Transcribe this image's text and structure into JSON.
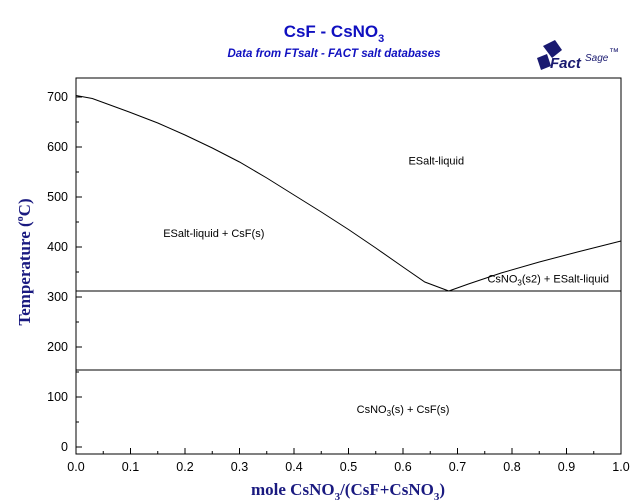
{
  "header": {
    "title_main": "CsF - CsNO",
    "title_sub": "3",
    "subtitle": "Data from FTsalt - FACT salt databases"
  },
  "logo": {
    "text_fact": "Fact",
    "text_sage": "Sage",
    "mark": "™",
    "icon": "factsage-logo-icon"
  },
  "chart_data": {
    "type": "line",
    "xlabel_parts": [
      "mole CsNO",
      "3",
      "/(CsF+CsNO",
      "3",
      ")"
    ],
    "ylabel_parts": [
      "Temperature (",
      "o",
      "C)"
    ],
    "xlim": [
      0,
      1
    ],
    "ylim": [
      0,
      750
    ],
    "xticks": [
      "0.0",
      "0.1",
      "0.2",
      "0.3",
      "0.4",
      "0.5",
      "0.6",
      "0.7",
      "0.8",
      "0.9",
      "1.0"
    ],
    "yticks": [
      "0",
      "100",
      "200",
      "300",
      "400",
      "500",
      "600",
      "700"
    ],
    "grid": false,
    "line_color": "#000000",
    "series": [
      {
        "points": [
          [
            0,
            703
          ],
          [
            0.03,
            697
          ],
          [
            0.06,
            685
          ],
          [
            0.1,
            669
          ],
          [
            0.15,
            648
          ],
          [
            0.2,
            624
          ],
          [
            0.25,
            598
          ],
          [
            0.3,
            570
          ],
          [
            0.35,
            538
          ],
          [
            0.4,
            504
          ],
          [
            0.45,
            470
          ],
          [
            0.5,
            435
          ],
          [
            0.55,
            398
          ],
          [
            0.6,
            360
          ],
          [
            0.64,
            330
          ],
          [
            0.684,
            312
          ]
        ]
      },
      {
        "points": [
          [
            0.684,
            312
          ],
          [
            0.72,
            326
          ],
          [
            0.78,
            348
          ],
          [
            0.85,
            370
          ],
          [
            0.92,
            390
          ],
          [
            1.0,
            412
          ]
        ]
      },
      {
        "points": [
          [
            0,
            312
          ],
          [
            1,
            312
          ]
        ]
      },
      {
        "points": [
          [
            0,
            154
          ],
          [
            1,
            154
          ]
        ]
      }
    ],
    "regions": [
      {
        "parts": [
          "ESalt-liquid"
        ],
        "x": 0.61,
        "y": 565
      },
      {
        "parts": [
          "ESalt-liquid + CsF(s)"
        ],
        "x": 0.16,
        "y": 420
      },
      {
        "parts": [
          "CsNO",
          "3",
          "(s2) + ESalt-liquid"
        ],
        "x": 0.755,
        "y": 329
      },
      {
        "parts": [
          "CsNO",
          "3",
          "(s) + CsF(s)"
        ],
        "x": 0.515,
        "y": 68
      }
    ]
  }
}
